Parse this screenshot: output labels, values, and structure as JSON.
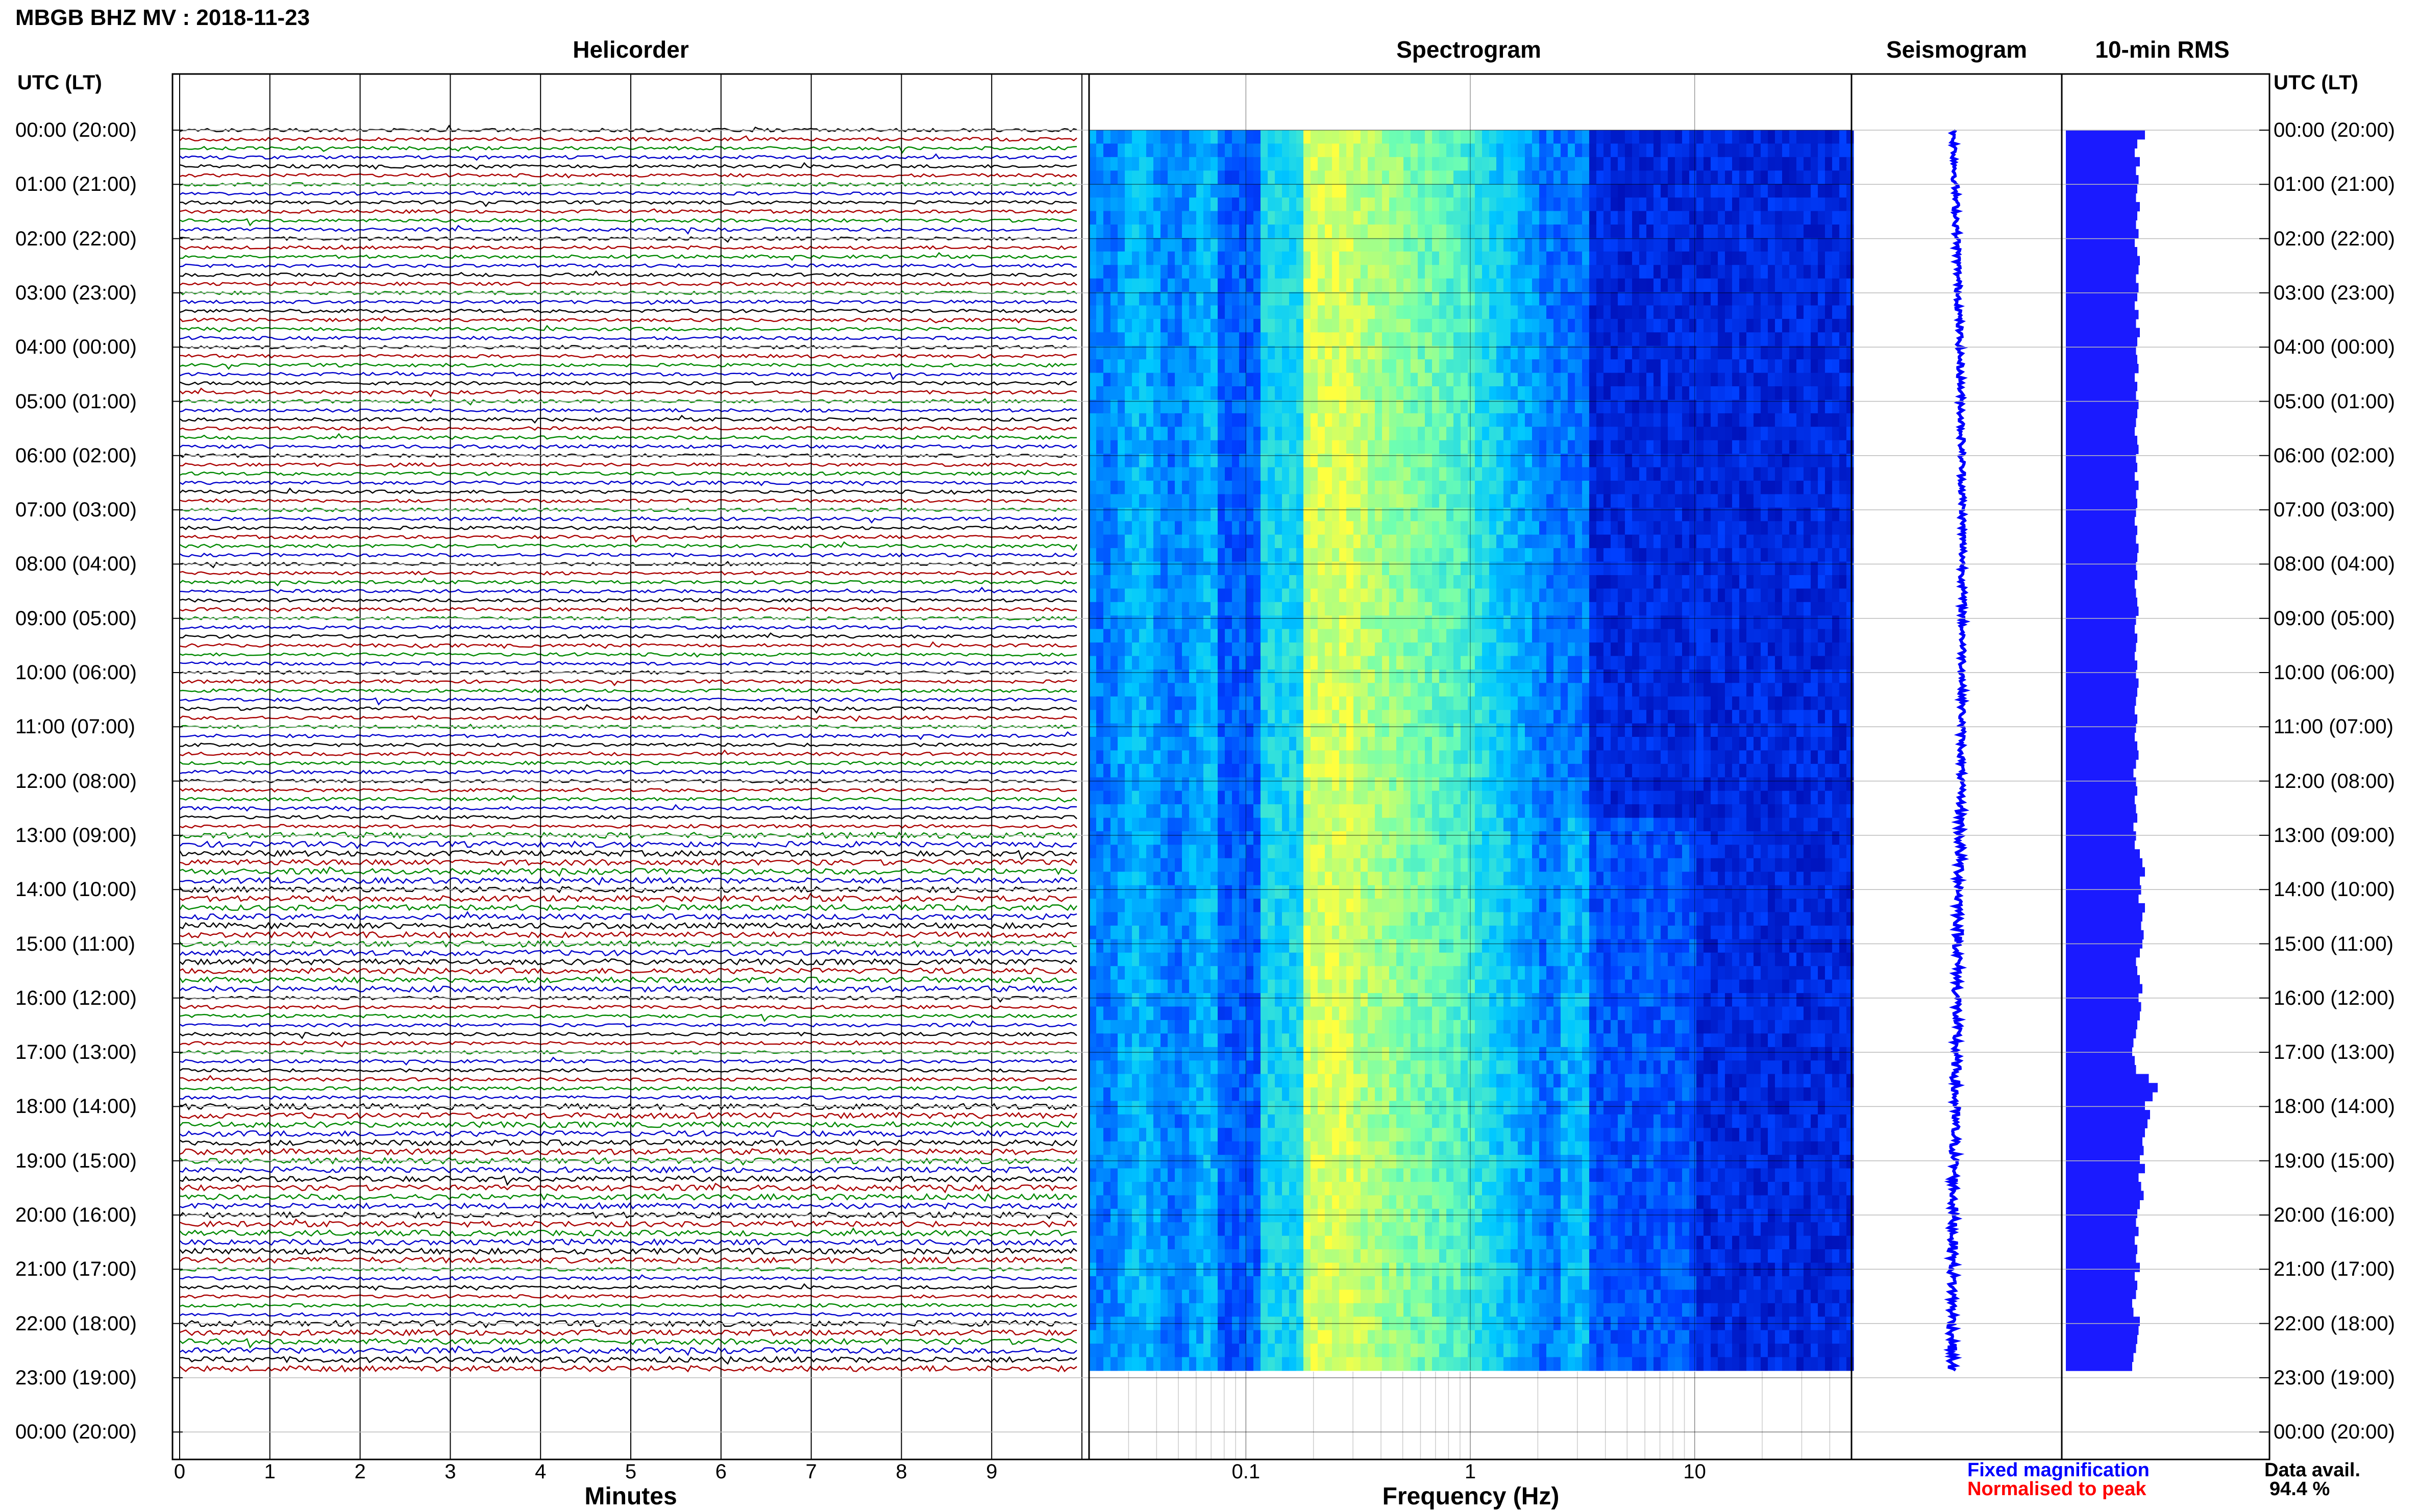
{
  "title": "MBGB BHZ MV : 2018-11-23",
  "panels": {
    "helicorder": "Helicorder",
    "spectrogram": "Spectrogram",
    "seismogram": "Seismogram",
    "rms": "10-min RMS"
  },
  "left_axis_title": "UTC (LT)",
  "right_axis_title": "UTC (LT)",
  "time_labels": [
    "00:00 (20:00)",
    "01:00 (21:00)",
    "02:00 (22:00)",
    "03:00 (23:00)",
    "04:00 (00:00)",
    "05:00 (01:00)",
    "06:00 (02:00)",
    "07:00 (03:00)",
    "08:00 (04:00)",
    "09:00 (05:00)",
    "10:00 (06:00)",
    "11:00 (07:00)",
    "12:00 (08:00)",
    "13:00 (09:00)",
    "14:00 (10:00)",
    "15:00 (11:00)",
    "16:00 (12:00)",
    "17:00 (13:00)",
    "18:00 (14:00)",
    "19:00 (15:00)",
    "20:00 (16:00)",
    "21:00 (17:00)",
    "22:00 (18:00)",
    "23:00 (19:00)",
    "00:00 (20:00)"
  ],
  "legend": {
    "fixed": "Fixed magnification",
    "normalised": "Normalised to peak",
    "fixed_color": "#0000ff",
    "normalised_color": "#ff0000"
  },
  "availability": {
    "label": "Data avail.",
    "value": "94.4 %"
  },
  "colors": {
    "trace_cycle": [
      "#000000",
      "#aa0000",
      "#008800",
      "#0000cc"
    ],
    "rms": "#1a1aff"
  },
  "chart_data": [
    {
      "type": "line",
      "name": "Helicorder",
      "xlabel": "Minutes",
      "xticks": [
        0,
        1,
        2,
        3,
        4,
        5,
        6,
        7,
        8,
        9
      ],
      "xlim": [
        0,
        10
      ],
      "lines_per_hour": 6,
      "hours_with_data": 23,
      "noisy_hours": [
        13,
        14,
        15,
        18,
        19,
        20,
        22
      ],
      "grid": true
    },
    {
      "type": "heatmap",
      "name": "Spectrogram",
      "xlabel": "Frequency (Hz)",
      "xscale": "log",
      "xlim": [
        0.02,
        50
      ],
      "xticks": [
        0.1,
        1,
        10
      ],
      "xticklabels": [
        "0.1",
        "1",
        "10"
      ],
      "ylim_hours": [
        0,
        24
      ],
      "peak_frequency_hz": 0.2,
      "colormap": [
        "#0000a0",
        "#0040ff",
        "#00c8ff",
        "#70ffb0",
        "#ffff40"
      ]
    },
    {
      "type": "line",
      "name": "Seismogram",
      "ylim_hours": [
        0,
        24
      ],
      "color": "#0000ff"
    },
    {
      "type": "bar",
      "name": "10-min RMS",
      "orientation": "horizontal",
      "ylim_hours": [
        0,
        24
      ],
      "relative_values": [
        0.62,
        0.56,
        0.54,
        0.58,
        0.55,
        0.57,
        0.56,
        0.55,
        0.58,
        0.56,
        0.55,
        0.57,
        0.54,
        0.56,
        0.58,
        0.57,
        0.55,
        0.57,
        0.56,
        0.54,
        0.57,
        0.55,
        0.58,
        0.56,
        0.55,
        0.56,
        0.57,
        0.54,
        0.56,
        0.55,
        0.57,
        0.56,
        0.55,
        0.54,
        0.56,
        0.57,
        0.55,
        0.56,
        0.54,
        0.57,
        0.55,
        0.56,
        0.55,
        0.54,
        0.56,
        0.55,
        0.57,
        0.56,
        0.55,
        0.56,
        0.54,
        0.55,
        0.56,
        0.57,
        0.55,
        0.54,
        0.56,
        0.55,
        0.54,
        0.56,
        0.55,
        0.57,
        0.56,
        0.55,
        0.54,
        0.56,
        0.55,
        0.54,
        0.56,
        0.57,
        0.55,
        0.53,
        0.55,
        0.56,
        0.54,
        0.55,
        0.56,
        0.53,
        0.55,
        0.54,
        0.58,
        0.6,
        0.62,
        0.58,
        0.59,
        0.57,
        0.62,
        0.6,
        0.59,
        0.61,
        0.6,
        0.58,
        0.55,
        0.56,
        0.58,
        0.6,
        0.57,
        0.59,
        0.58,
        0.56,
        0.55,
        0.53,
        0.52,
        0.54,
        0.55,
        0.65,
        0.72,
        0.68,
        0.62,
        0.66,
        0.64,
        0.62,
        0.6,
        0.61,
        0.58,
        0.62,
        0.57,
        0.59,
        0.61,
        0.58,
        0.56,
        0.55,
        0.57,
        0.54,
        0.56,
        0.55,
        0.58,
        0.54,
        0.56,
        0.55,
        0.52,
        0.53,
        0.58,
        0.57,
        0.56,
        0.55,
        0.53,
        0.52
      ]
    }
  ]
}
